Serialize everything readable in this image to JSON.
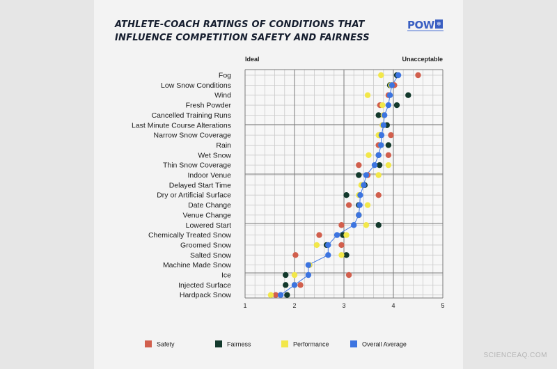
{
  "header": {
    "title_line1": "ATHLETE-COACH RATINGS OF CONDITIONS THAT",
    "title_line2": "INFLUENCE COMPETITION SAFETY AND FAIRNESS",
    "logo_text": "POW"
  },
  "footer": {
    "watermark": "SCIENCEAQ.COM"
  },
  "colors": {
    "safety": "#d15f4d",
    "fairness": "#13392c",
    "performance": "#f2e74a",
    "overall": "#3c74e0",
    "grid": "#7a7a7a",
    "minor_grid": "#c9c9c9"
  },
  "chart_data": {
    "type": "scatter",
    "title": "Athlete-Coach Ratings of Conditions That Influence Competition Safety and Fairness",
    "xlim": [
      1,
      5
    ],
    "x_ticks": [
      1,
      2,
      3,
      4,
      5
    ],
    "axis_left_label": "Ideal",
    "axis_right_label": "Unacceptable",
    "categories": [
      "Fog",
      "Low Snow Conditions",
      "Wind",
      "Fresh Powder",
      "Cancelled Training Runs",
      "Last Minute Course Alterations",
      "Narrow Snow Coverage",
      "Rain",
      "Wet Snow",
      "Thin Snow Coverage",
      "Indoor Venue",
      "Delayed Start Time",
      "Dry or Artificial Surface",
      "Date Change",
      "Venue Change",
      "Lowered Start",
      "Chemically Treated Snow",
      "Groomed Snow",
      "Salted Snow",
      "Machine Made Snow",
      "Ice",
      "Injected Surface",
      "Hardpack Snow"
    ],
    "series": [
      {
        "name": "Safety",
        "color_key": "safety",
        "values": [
          4.5,
          4.02,
          3.9,
          3.73,
          3.8,
          3.78,
          3.95,
          3.7,
          3.9,
          3.3,
          3.48,
          3.36,
          3.7,
          3.1,
          3.3,
          2.95,
          2.5,
          2.95,
          2.02,
          2.3,
          3.1,
          2.12,
          1.62
        ]
      },
      {
        "name": "Fairness",
        "color_key": "fairness",
        "values": [
          4.07,
          3.93,
          4.3,
          4.07,
          3.7,
          3.87,
          3.72,
          3.9,
          3.7,
          3.72,
          3.3,
          3.42,
          3.05,
          3.3,
          3.3,
          3.7,
          2.98,
          2.65,
          3.05,
          2.3,
          1.82,
          1.82,
          1.85
        ]
      },
      {
        "name": "Performance",
        "color_key": "performance",
        "values": [
          3.75,
          3.95,
          3.48,
          3.78,
          3.8,
          3.78,
          3.7,
          3.75,
          3.5,
          3.9,
          3.7,
          3.35,
          3.3,
          3.48,
          3.3,
          3.45,
          3.05,
          2.45,
          2.95,
          2.3,
          2.0,
          2.0,
          1.52
        ]
      },
      {
        "name": "Overall Average",
        "color_key": "overall",
        "values": [
          4.1,
          3.97,
          3.93,
          3.9,
          3.82,
          3.8,
          3.76,
          3.75,
          3.7,
          3.62,
          3.45,
          3.4,
          3.33,
          3.32,
          3.3,
          3.2,
          2.86,
          2.68,
          2.68,
          2.28,
          2.28,
          2.0,
          1.72
        ]
      }
    ],
    "legend": [
      "Safety",
      "Fairness",
      "Performance",
      "Overall Average"
    ],
    "legend_position": "bottom"
  }
}
